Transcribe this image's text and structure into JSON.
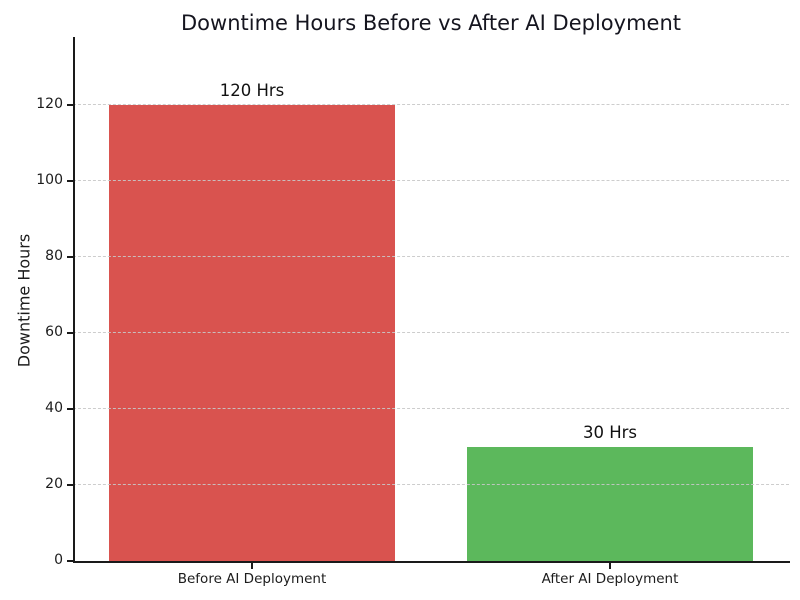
{
  "chart_data": {
    "type": "bar",
    "title": "Downtime Hours Before vs After AI Deployment",
    "xlabel": "",
    "ylabel": "Downtime Hours",
    "categories": [
      "Before AI Deployment",
      "After AI Deployment"
    ],
    "values": [
      120,
      30
    ],
    "bar_labels": [
      "120 Hrs",
      "30 Hrs"
    ],
    "bar_colors": [
      "#d9534f",
      "#5cb85c"
    ],
    "yticks": [
      0,
      20,
      40,
      60,
      80,
      100,
      120
    ],
    "ylim": [
      0,
      138
    ],
    "grid": "horizontal-dashed",
    "legend": "none",
    "background": "#ffffff"
  }
}
